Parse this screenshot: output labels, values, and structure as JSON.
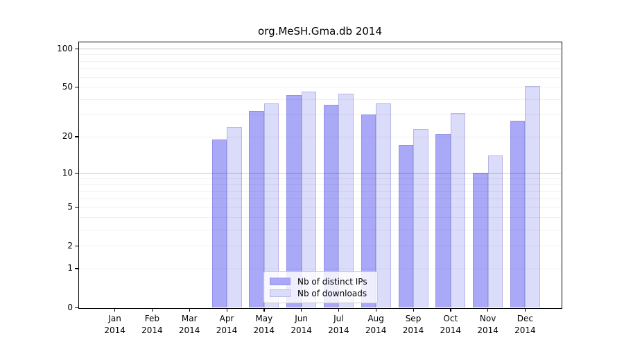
{
  "page": {
    "background": "#ffffff"
  },
  "chart_data": {
    "type": "bar",
    "title": "org.MeSH.Gma.db 2014",
    "categories": [
      "Jan 2014",
      "Feb 2014",
      "Mar 2014",
      "Apr 2014",
      "May 2014",
      "Jun 2014",
      "Jul 2014",
      "Aug 2014",
      "Sep 2014",
      "Oct 2014",
      "Nov 2014",
      "Dec 2014"
    ],
    "series": [
      {
        "name": "Nb of distinct IPs",
        "color": "#a9a9f8",
        "values": [
          0,
          0,
          0,
          19,
          32,
          43,
          36,
          30,
          17,
          21,
          10,
          27
        ]
      },
      {
        "name": "Nb of downloads",
        "color": "#dbdbfa",
        "values": [
          0,
          0,
          0,
          24,
          37,
          46,
          44,
          37,
          23,
          31,
          14,
          51
        ]
      }
    ],
    "xlabel": "",
    "ylabel": "",
    "yscale": "log1p",
    "ylim": [
      0,
      113
    ],
    "yticks": [
      {
        "label": "100",
        "value": 100
      },
      {
        "label": "50",
        "value": 50
      },
      {
        "label": "20",
        "value": 20
      },
      {
        "label": "10",
        "value": 10
      },
      {
        "label": "5",
        "value": 5
      },
      {
        "label": "2",
        "value": 2
      },
      {
        "label": "1",
        "value": 1
      },
      {
        "label": "0",
        "value": 0
      }
    ],
    "grid": {
      "minor": [
        1,
        2,
        3,
        4,
        5,
        6,
        7,
        8,
        9,
        20,
        30,
        40,
        50,
        60,
        70,
        80,
        90
      ],
      "major": [
        10,
        100
      ]
    },
    "legend": {
      "position": "bottom-center"
    }
  }
}
